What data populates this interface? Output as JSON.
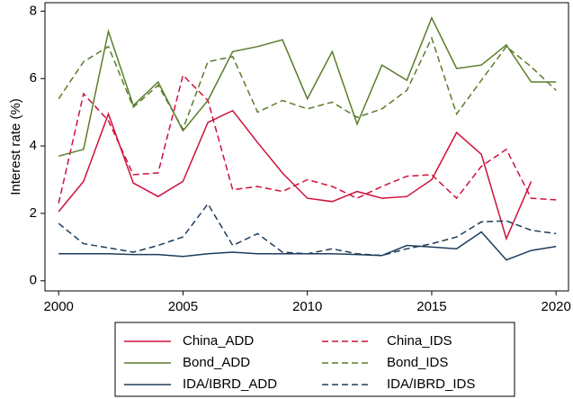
{
  "chart_data": {
    "type": "line",
    "y_label": "Interest rate (%)",
    "x": [
      2000,
      2001,
      2002,
      2003,
      2004,
      2005,
      2006,
      2007,
      2008,
      2009,
      2010,
      2011,
      2012,
      2013,
      2014,
      2015,
      2016,
      2017,
      2018,
      2019,
      2020
    ],
    "xlim": [
      1999.45,
      2020.5
    ],
    "xticks": [
      2000,
      2005,
      2010,
      2015,
      2020
    ],
    "ylim": [
      -0.3,
      8.25
    ],
    "yticks": [
      0,
      2,
      4,
      6,
      8
    ],
    "legend": "bottom",
    "series": [
      {
        "name": "China_ADD",
        "color": "#d0103a",
        "dash": "solid",
        "values": [
          2.05,
          2.95,
          4.95,
          2.9,
          2.5,
          2.95,
          4.7,
          5.05,
          4.1,
          3.2,
          2.45,
          2.35,
          2.65,
          2.45,
          2.5,
          3.0,
          4.4,
          3.75,
          1.25,
          2.95,
          null
        ]
      },
      {
        "name": "China_IDS",
        "color": "#d0103a",
        "dash": "dashed",
        "values": [
          2.3,
          5.55,
          4.75,
          3.15,
          3.2,
          6.1,
          5.35,
          2.7,
          2.8,
          2.65,
          3.0,
          2.8,
          2.45,
          2.8,
          3.1,
          3.15,
          2.45,
          3.4,
          3.9,
          2.45,
          2.4
        ]
      },
      {
        "name": "Bond_ADD",
        "color": "#5a7d2a",
        "dash": "solid",
        "values": [
          3.7,
          3.9,
          7.4,
          5.2,
          5.9,
          4.45,
          5.35,
          6.8,
          6.95,
          7.15,
          5.4,
          6.8,
          4.65,
          6.4,
          5.95,
          7.8,
          6.3,
          6.4,
          7.0,
          5.9,
          5.9
        ]
      },
      {
        "name": "Bond_IDS",
        "color": "#5a7d2a",
        "dash": "dashed",
        "values": [
          5.4,
          6.5,
          6.95,
          5.15,
          5.8,
          4.5,
          6.5,
          6.65,
          5.0,
          5.35,
          5.1,
          5.3,
          4.85,
          5.1,
          5.65,
          7.2,
          4.95,
          5.95,
          6.95,
          6.35,
          5.65
        ]
      },
      {
        "name": "IDA/IBRD_ADD",
        "color": "#1f3d5c",
        "dash": "solid",
        "values": [
          0.8,
          0.8,
          0.8,
          0.78,
          0.78,
          0.72,
          0.8,
          0.85,
          0.8,
          0.8,
          0.8,
          0.8,
          0.78,
          0.75,
          1.05,
          1.0,
          0.95,
          1.45,
          0.62,
          0.9,
          1.02
        ]
      },
      {
        "name": "IDA/IBRD_IDS",
        "color": "#1f3d5c",
        "dash": "dashed",
        "values": [
          1.7,
          1.1,
          0.98,
          0.85,
          1.05,
          1.3,
          2.28,
          1.05,
          1.4,
          0.85,
          0.8,
          0.95,
          0.8,
          0.75,
          0.95,
          1.1,
          1.3,
          1.75,
          1.78,
          1.5,
          1.4
        ]
      }
    ]
  }
}
